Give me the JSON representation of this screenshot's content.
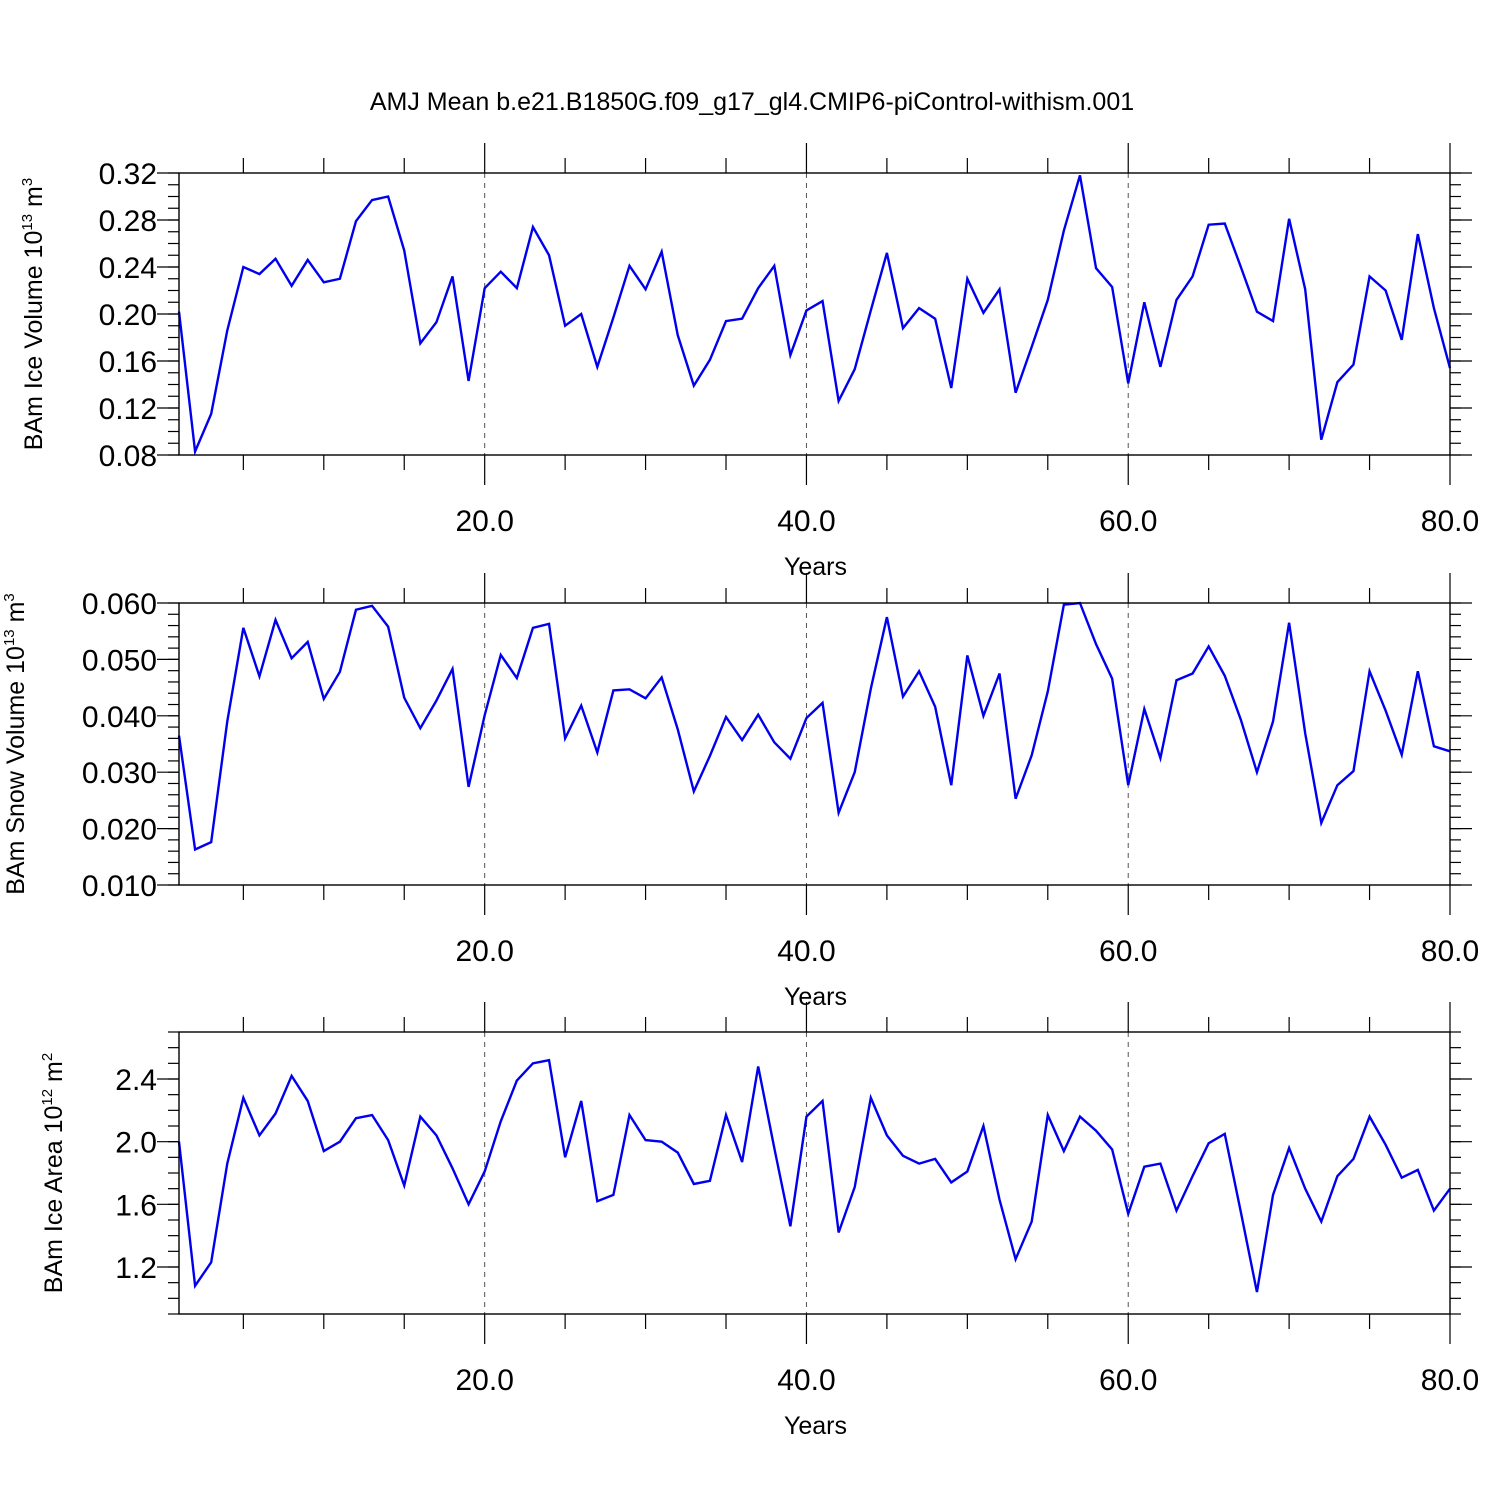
{
  "title": "AMJ Mean b.e21.B1850G.f09_g17_gl4.CMIP6-piControl-withism.001",
  "chart_data": [
    {
      "type": "line",
      "id": "ice-volume",
      "ylabel": {
        "main": "BAm Ice Volume 10",
        "exp": "13",
        "unit": " m",
        "unit_exp": "3"
      },
      "xlabel": "Years",
      "xlim": [
        1,
        80
      ],
      "xticks": [
        20,
        40,
        60,
        80
      ],
      "xtick_labels": [
        "20.0",
        "40.0",
        "60.0",
        "80.0"
      ],
      "ylim": [
        0.08,
        0.32
      ],
      "yticks": [
        0.08,
        0.12,
        0.16,
        0.2,
        0.24,
        0.28,
        0.32
      ],
      "ytick_labels": [
        "0.08",
        "0.12",
        "0.16",
        "0.20",
        "0.24",
        "0.28",
        "0.32"
      ],
      "y_minor_step": 0.01,
      "grid": "dashed vertical at major x ticks",
      "color": "#0000ee",
      "x": [
        1,
        2,
        3,
        4,
        5,
        6,
        7,
        8,
        9,
        10,
        11,
        12,
        13,
        14,
        15,
        16,
        17,
        18,
        19,
        20,
        21,
        22,
        23,
        24,
        25,
        26,
        27,
        28,
        29,
        30,
        31,
        32,
        33,
        34,
        35,
        36,
        37,
        38,
        39,
        40,
        41,
        42,
        43,
        44,
        45,
        46,
        47,
        48,
        49,
        50,
        51,
        52,
        53,
        54,
        55,
        56,
        57,
        58,
        59,
        60,
        61,
        62,
        63,
        64,
        65,
        66,
        67,
        68,
        69,
        70,
        71,
        72,
        73,
        74,
        75,
        76,
        77,
        78,
        79,
        80
      ],
      "values": [
        0.202,
        0.083,
        0.115,
        0.186,
        0.24,
        0.234,
        0.247,
        0.224,
        0.246,
        0.227,
        0.23,
        0.279,
        0.297,
        0.3,
        0.254,
        0.175,
        0.193,
        0.232,
        0.143,
        0.222,
        0.236,
        0.222,
        0.274,
        0.25,
        0.19,
        0.2,
        0.155,
        0.197,
        0.241,
        0.221,
        0.253,
        0.182,
        0.139,
        0.161,
        0.194,
        0.196,
        0.222,
        0.241,
        0.165,
        0.203,
        0.211,
        0.126,
        0.153,
        0.203,
        0.252,
        0.188,
        0.205,
        0.196,
        0.137,
        0.23,
        0.201,
        0.221,
        0.133,
        0.172,
        0.212,
        0.271,
        0.318,
        0.239,
        0.223,
        0.141,
        0.21,
        0.155,
        0.212,
        0.232,
        0.276,
        0.277,
        0.24,
        0.202,
        0.194,
        0.281,
        0.221,
        0.093,
        0.142,
        0.157,
        0.232,
        0.22,
        0.178,
        0.268,
        0.205,
        0.154
      ]
    },
    {
      "type": "line",
      "id": "snow-volume",
      "ylabel": {
        "main": "BAm Snow Volume 10",
        "exp": "13",
        "unit": " m",
        "unit_exp": "3"
      },
      "xlabel": "Years",
      "xlim": [
        1,
        80
      ],
      "xticks": [
        20,
        40,
        60,
        80
      ],
      "xtick_labels": [
        "20.0",
        "40.0",
        "60.0",
        "80.0"
      ],
      "ylim": [
        0.01,
        0.06
      ],
      "yticks": [
        0.01,
        0.02,
        0.03,
        0.04,
        0.05,
        0.06
      ],
      "ytick_labels": [
        "0.010",
        "0.020",
        "0.030",
        "0.040",
        "0.050",
        "0.060"
      ],
      "y_minor_step": 0.002,
      "grid": "dashed vertical at major x ticks",
      "color": "#0000ee",
      "x": [
        1,
        2,
        3,
        4,
        5,
        6,
        7,
        8,
        9,
        10,
        11,
        12,
        13,
        14,
        15,
        16,
        17,
        18,
        19,
        20,
        21,
        22,
        23,
        24,
        25,
        26,
        27,
        28,
        29,
        30,
        31,
        32,
        33,
        34,
        35,
        36,
        37,
        38,
        39,
        40,
        41,
        42,
        43,
        44,
        45,
        46,
        47,
        48,
        49,
        50,
        51,
        52,
        53,
        54,
        55,
        56,
        57,
        58,
        59,
        60,
        61,
        62,
        63,
        64,
        65,
        66,
        67,
        68,
        69,
        70,
        71,
        72,
        73,
        74,
        75,
        76,
        77,
        78,
        79,
        80
      ],
      "values": [
        0.0365,
        0.0163,
        0.0176,
        0.039,
        0.0556,
        0.047,
        0.057,
        0.0502,
        0.0531,
        0.043,
        0.0478,
        0.0588,
        0.0595,
        0.0558,
        0.0432,
        0.0378,
        0.0427,
        0.0483,
        0.0274,
        0.0401,
        0.0508,
        0.0467,
        0.0556,
        0.0563,
        0.036,
        0.0418,
        0.0335,
        0.0445,
        0.0447,
        0.0431,
        0.0468,
        0.0376,
        0.0266,
        0.0329,
        0.0398,
        0.0357,
        0.0402,
        0.0353,
        0.0324,
        0.0396,
        0.0423,
        0.0228,
        0.03,
        0.0448,
        0.0575,
        0.0434,
        0.0479,
        0.0416,
        0.0277,
        0.0507,
        0.04,
        0.0475,
        0.0253,
        0.033,
        0.0443,
        0.0597,
        0.06,
        0.0527,
        0.0466,
        0.0277,
        0.0412,
        0.0325,
        0.0463,
        0.0475,
        0.0523,
        0.0471,
        0.0393,
        0.03,
        0.039,
        0.0565,
        0.0369,
        0.021,
        0.0277,
        0.0302,
        0.0479,
        0.0409,
        0.0331,
        0.0479,
        0.0346,
        0.0337
      ]
    },
    {
      "type": "line",
      "id": "ice-area",
      "ylabel": {
        "main": "BAm Ice Area 10",
        "exp": "12",
        "unit": " m",
        "unit_exp": "2"
      },
      "xlabel": "Years",
      "xlim": [
        1,
        80
      ],
      "xticks": [
        20,
        40,
        60,
        80
      ],
      "xtick_labels": [
        "20.0",
        "40.0",
        "60.0",
        "80.0"
      ],
      "ylim": [
        0.9,
        2.7
      ],
      "yticks": [
        1.2,
        1.6,
        2.0,
        2.4
      ],
      "ytick_labels": [
        "1.2",
        "1.6",
        "2.0",
        "2.4"
      ],
      "y_minor_step": 0.1,
      "grid": "dashed vertical at major x ticks",
      "color": "#0000ee",
      "x": [
        1,
        2,
        3,
        4,
        5,
        6,
        7,
        8,
        9,
        10,
        11,
        12,
        13,
        14,
        15,
        16,
        17,
        18,
        19,
        20,
        21,
        22,
        23,
        24,
        25,
        26,
        27,
        28,
        29,
        30,
        31,
        32,
        33,
        34,
        35,
        36,
        37,
        38,
        39,
        40,
        41,
        42,
        43,
        44,
        45,
        46,
        47,
        48,
        49,
        50,
        51,
        52,
        53,
        54,
        55,
        56,
        57,
        58,
        59,
        60,
        61,
        62,
        63,
        64,
        65,
        66,
        67,
        68,
        69,
        70,
        71,
        72,
        73,
        74,
        75,
        76,
        77,
        78,
        79,
        80
      ],
      "values": [
        2.0,
        1.08,
        1.23,
        1.86,
        2.28,
        2.04,
        2.18,
        2.42,
        2.26,
        1.94,
        2.0,
        2.15,
        2.17,
        2.01,
        1.72,
        2.16,
        2.04,
        1.83,
        1.6,
        1.81,
        2.13,
        2.39,
        2.5,
        2.52,
        1.9,
        2.26,
        1.62,
        1.66,
        2.17,
        2.01,
        2.0,
        1.93,
        1.73,
        1.75,
        2.17,
        1.87,
        2.48,
        1.96,
        1.46,
        2.16,
        2.26,
        1.42,
        1.71,
        2.28,
        2.04,
        1.91,
        1.86,
        1.89,
        1.74,
        1.81,
        2.1,
        1.63,
        1.25,
        1.49,
        2.17,
        1.94,
        2.16,
        2.07,
        1.95,
        1.54,
        1.84,
        1.86,
        1.56,
        1.78,
        1.99,
        2.05,
        1.55,
        1.04,
        1.66,
        1.96,
        1.7,
        1.49,
        1.78,
        1.89,
        2.16,
        1.98,
        1.77,
        1.82,
        1.56,
        1.7
      ]
    }
  ]
}
